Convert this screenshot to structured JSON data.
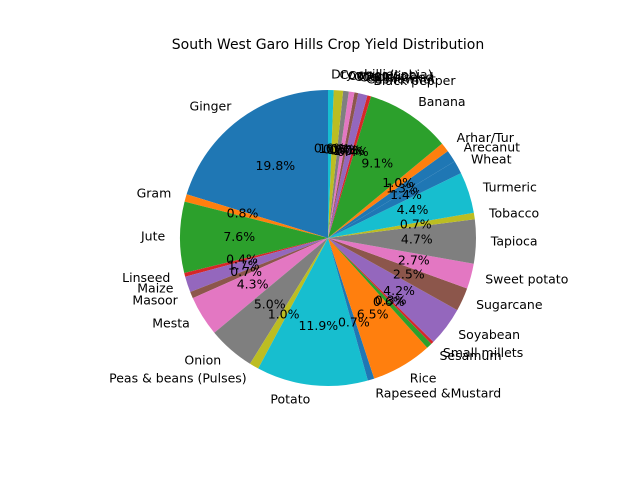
{
  "chart_data": {
    "type": "pie",
    "title": "South West Garo Hills Crop Yield Distribution",
    "start_angle_deg": 90,
    "direction": "counterclockwise",
    "slices": [
      {
        "label": "Ginger",
        "value": 19.8,
        "pct_label": "19.8%",
        "color": "#1f77b4"
      },
      {
        "label": "Gram",
        "value": 0.8,
        "pct_label": "0.8%",
        "color": "#ff7f0e"
      },
      {
        "label": "Jute",
        "value": 7.6,
        "pct_label": "7.6%",
        "color": "#2ca02c"
      },
      {
        "label": "Linseed",
        "value": 0.4,
        "pct_label": "0.4%",
        "color": "#d62728"
      },
      {
        "label": "Maize",
        "value": 1.7,
        "pct_label": "1.7%",
        "color": "#9467bd"
      },
      {
        "label": "Masoor",
        "value": 0.7,
        "pct_label": "0.7%",
        "color": "#8c564b"
      },
      {
        "label": "Mesta",
        "value": 4.3,
        "pct_label": "4.3%",
        "color": "#e377c2"
      },
      {
        "label": "Onion",
        "value": 5.0,
        "pct_label": "5.0%",
        "color": "#7f7f7f"
      },
      {
        "label": "Peas & beans (Pulses)",
        "value": 1.0,
        "pct_label": "1.0%",
        "color": "#bcbd22"
      },
      {
        "label": "Potato",
        "value": 11.9,
        "pct_label": "11.9%",
        "color": "#17becf"
      },
      {
        "label": "Rapeseed &Mustard",
        "value": 0.7,
        "pct_label": "0.7%",
        "color": "#1f77b4"
      },
      {
        "label": "Rice",
        "value": 6.5,
        "pct_label": "6.5%",
        "color": "#ff7f0e"
      },
      {
        "label": "Sesamum",
        "value": 0.6,
        "pct_label": "0.6%",
        "color": "#2ca02c"
      },
      {
        "label": "Small millets",
        "value": 0.3,
        "pct_label": "0.3%",
        "color": "#d62728"
      },
      {
        "label": "Soyabean",
        "value": 4.2,
        "pct_label": "4.2%",
        "color": "#9467bd"
      },
      {
        "label": "Sugarcane",
        "value": 2.5,
        "pct_label": "2.5%",
        "color": "#8c564b"
      },
      {
        "label": "Sweet potato",
        "value": 2.7,
        "pct_label": "2.7%",
        "color": "#e377c2"
      },
      {
        "label": "Tapioca",
        "value": 4.7,
        "pct_label": "4.7%",
        "color": "#7f7f7f"
      },
      {
        "label": "Tobacco",
        "value": 0.7,
        "pct_label": "0.7%",
        "color": "#bcbd22"
      },
      {
        "label": "Turmeric",
        "value": 4.4,
        "pct_label": "4.4%",
        "color": "#17becf"
      },
      {
        "label": "Wheat",
        "value": 1.4,
        "pct_label": "1.4%",
        "color": "#1f77b4"
      },
      {
        "label": "Arecanut",
        "value": 1.3,
        "pct_label": "1.3%",
        "color": "#1f77b4"
      },
      {
        "label": "Arhar/Tur",
        "value": 1.0,
        "pct_label": "1.0%",
        "color": "#ff7f0e"
      },
      {
        "label": "Banana",
        "value": 9.1,
        "pct_label": "9.1%",
        "color": "#2ca02c"
      },
      {
        "label": "Black pepper",
        "value": 0.4,
        "pct_label": "0.4%",
        "color": "#d62728"
      },
      {
        "label": "Cashewnut",
        "value": 1.0,
        "pct_label": "1.0%",
        "color": "#9467bd"
      },
      {
        "label": "Castor seed",
        "value": 0.4,
        "pct_label": "0.4%",
        "color": "#8c564b"
      },
      {
        "label": "Coconut",
        "value": 0.6,
        "pct_label": "0.6%",
        "color": "#e377c2"
      },
      {
        "label": "Cotton(lint)",
        "value": 0.6,
        "pct_label": "0.6%",
        "color": "#7f7f7f"
      },
      {
        "label": "Cowpea(Lobia)",
        "value": 1.0,
        "pct_label": "1.0%",
        "color": "#bcbd22"
      },
      {
        "label": "Dry chillies",
        "value": 0.6,
        "pct_label": "0.6%",
        "color": "#17becf"
      }
    ]
  }
}
